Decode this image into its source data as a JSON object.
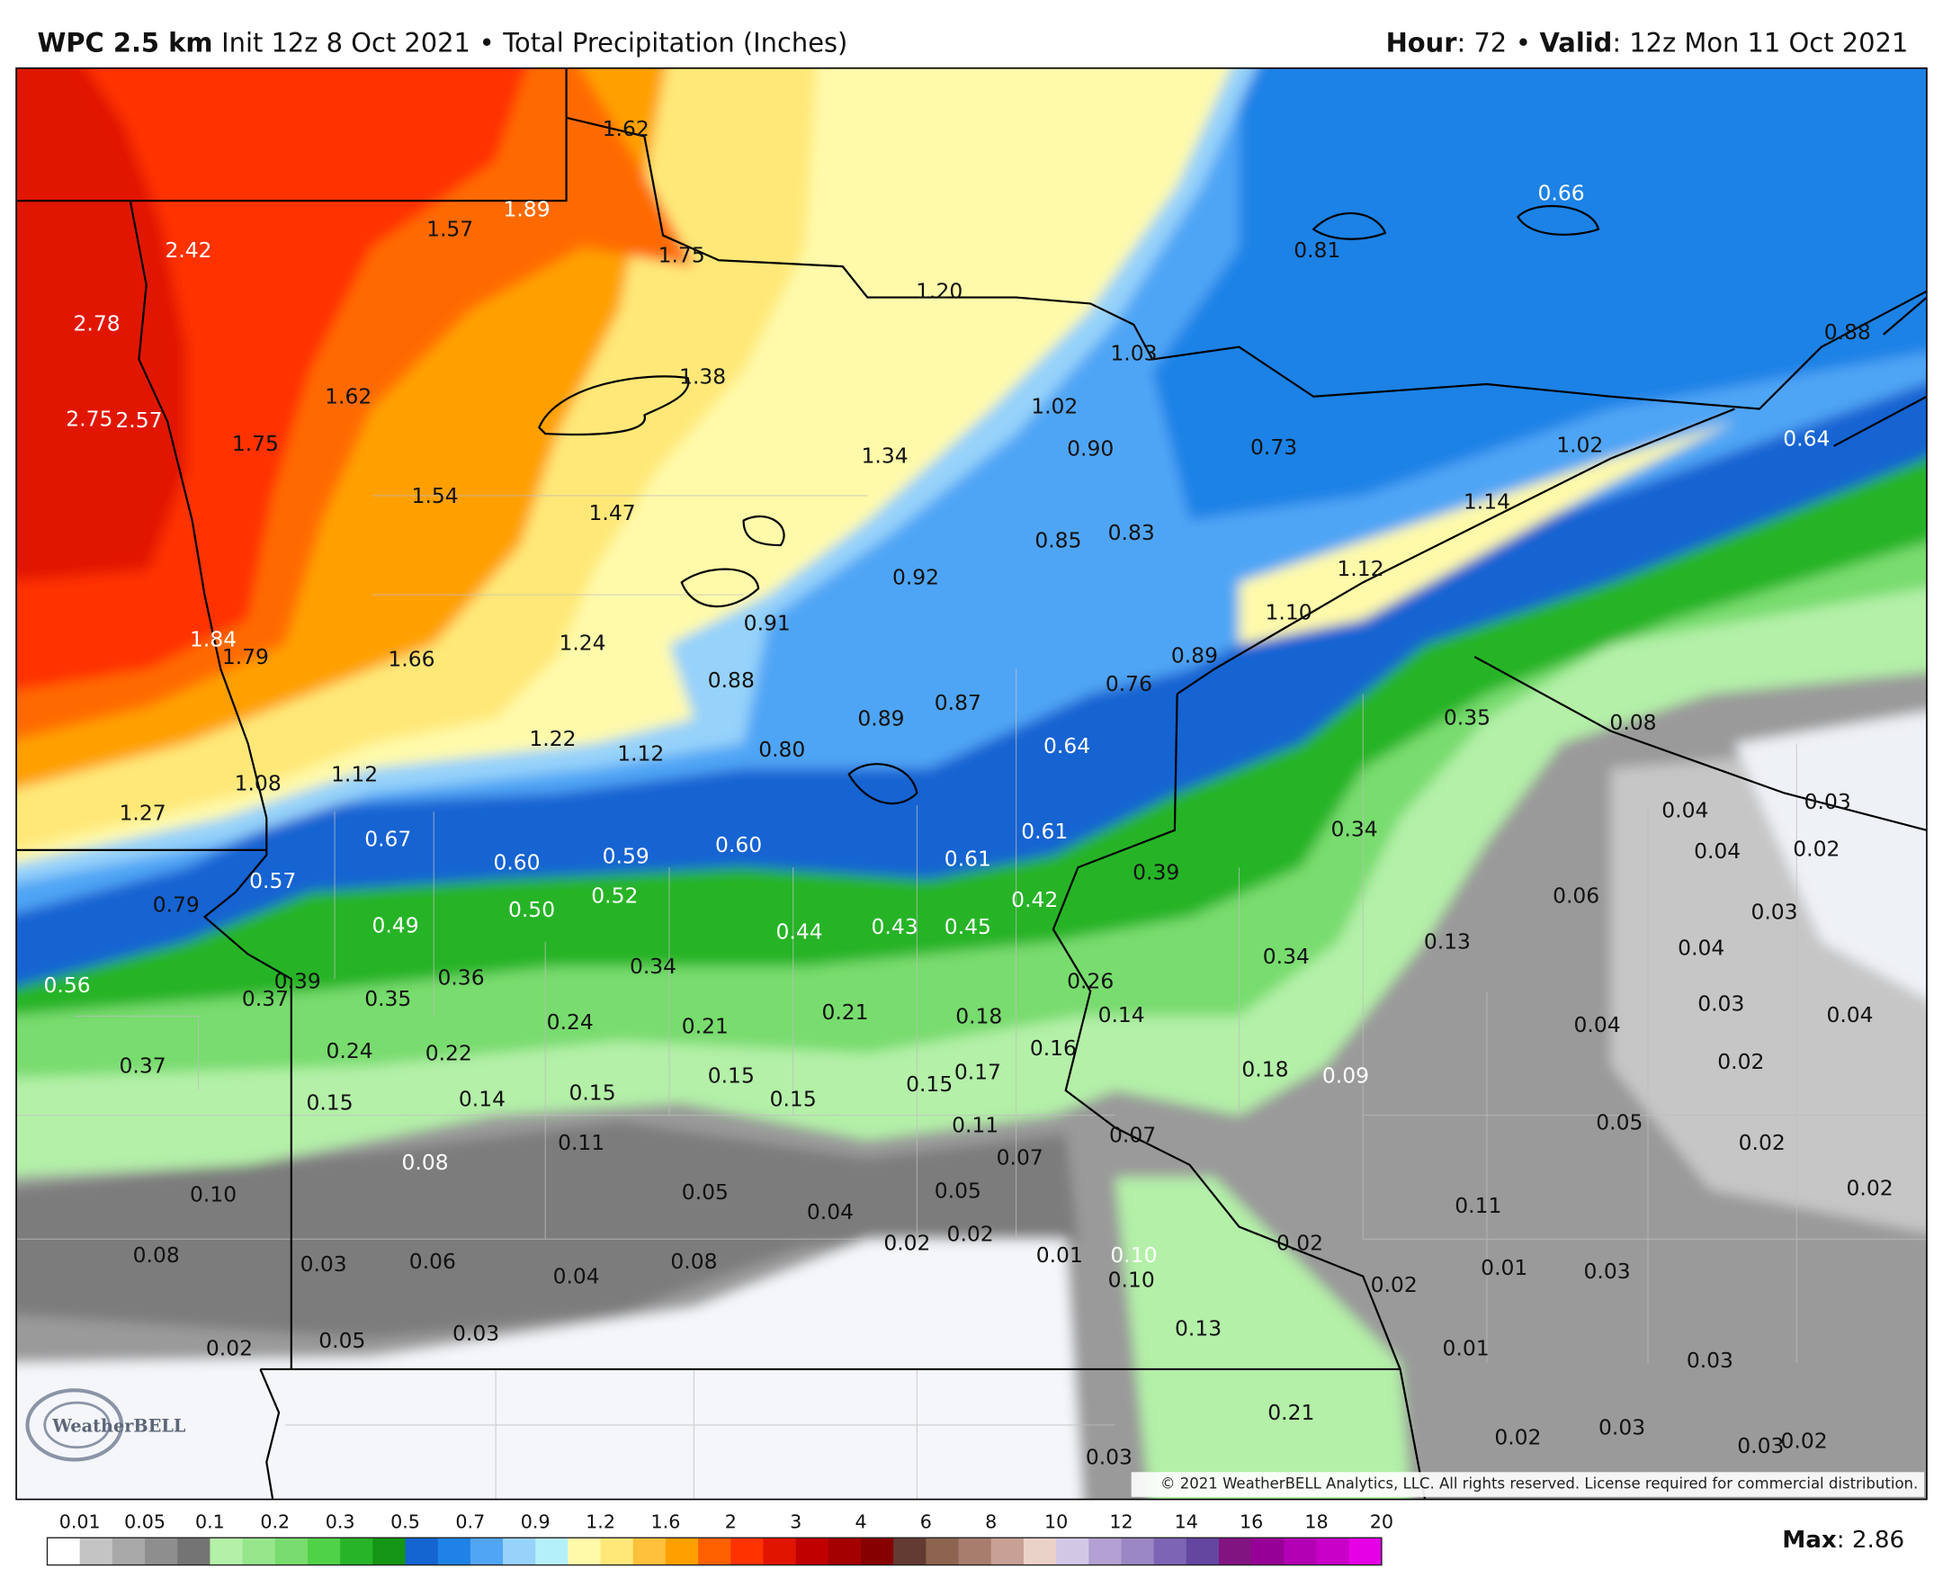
{
  "header": {
    "model": "WPC 2.5 km",
    "init": "Init 12z 8 Oct 2021",
    "separator": "•",
    "product": "Total Precipitation (Inches)",
    "hour_label": "Hour",
    "hour_text": ": 72",
    "valid_label": "Valid",
    "valid_text": ": 12z Mon 11 Oct 2021"
  },
  "map": {
    "point_labels": [
      "1.62",
      "1.89",
      "1.57",
      "2.42",
      "1.75",
      "1.20",
      "2.78",
      "1.03",
      "1.38",
      "1.62",
      "1.02",
      "0.88",
      "0.66",
      "0.81",
      "2.75",
      "2.57",
      "1.75",
      "0.90",
      "1.34",
      "0.73",
      "1.02",
      "0.64",
      "1.54",
      "1.47",
      "1.14",
      "0.85",
      "0.83",
      "0.92",
      "1.12",
      "1.84",
      "1.79",
      "1.66",
      "1.24",
      "0.91",
      "1.10",
      "0.89",
      "0.88",
      "0.76",
      "0.87",
      "0.89",
      "0.35",
      "0.08",
      "1.22",
      "1.12",
      "0.80",
      "0.64",
      "1.08",
      "1.12",
      "1.27",
      "0.04",
      "0.03",
      "0.61",
      "0.34",
      "0.67",
      "0.60",
      "0.59",
      "0.60",
      "0.61",
      "0.04",
      "0.02",
      "0.57",
      "0.39",
      "0.79",
      "0.42",
      "0.06",
      "0.03",
      "0.49",
      "0.50",
      "0.52",
      "0.44",
      "0.43",
      "0.45",
      "0.34",
      "0.13",
      "0.04",
      "0.56",
      "0.39",
      "0.37",
      "0.35",
      "0.36",
      "0.34",
      "0.26",
      "0.03",
      "0.04",
      "0.24",
      "0.21",
      "0.21",
      "0.18",
      "0.14",
      "0.04",
      "0.37",
      "0.24",
      "0.22",
      "0.16",
      "0.18",
      "0.09",
      "0.02",
      "0.15",
      "0.14",
      "0.15",
      "0.15",
      "0.15",
      "0.15",
      "0.17",
      "0.05",
      "0.11",
      "0.11",
      "0.07",
      "0.02",
      "0.08",
      "0.07",
      "0.10",
      "0.05",
      "0.05",
      "0.04",
      "0.02",
      "0.11",
      "0.08",
      "0.03",
      "0.06",
      "0.04",
      "0.08",
      "0.02",
      "0.02",
      "0.01",
      "0.10",
      "0.10",
      "0.02",
      "0.01",
      "0.03",
      "0.02",
      "0.13",
      "0.03",
      "0.05",
      "0.02",
      "0.01",
      "0.03",
      "0.21",
      "0.02",
      "0.03",
      "0.03",
      "0.02",
      "0.03"
    ],
    "copyright": "© 2021 WeatherBELL Analytics, LLC. All rights reserved. License required for commercial distribution.",
    "logo": "WeatherBELL"
  },
  "legend": {
    "labels": [
      "0.01",
      "0.05",
      "0.1",
      "0.2",
      "0.3",
      "0.5",
      "0.7",
      "0.9",
      "1.2",
      "1.6",
      "2",
      "3",
      "4",
      "6",
      "8",
      "10",
      "12",
      "14",
      "16",
      "18",
      "20"
    ],
    "colors": [
      "#ffffff",
      "#c4c4c4",
      "#a8a8a8",
      "#8e8e8e",
      "#747474",
      "#b4f0a8",
      "#96e68c",
      "#78dc6e",
      "#50d248",
      "#28b428",
      "#149614",
      "#1464d2",
      "#1e82e6",
      "#50a5f5",
      "#96d2fa",
      "#b4f0fa",
      "#fffaaa",
      "#ffe878",
      "#ffc03c",
      "#ffa000",
      "#ff6000",
      "#ff3200",
      "#e11400",
      "#c00000",
      "#a50000",
      "#870000",
      "#643b32",
      "#8c6450",
      "#a87d6e",
      "#c8a096",
      "#ebd2c8",
      "#d2c8e6",
      "#b4a0d2",
      "#9b87c3",
      "#7d64b4",
      "#6446a0",
      "#821482",
      "#960096",
      "#b400b4",
      "#c800c8",
      "#e600e6"
    ],
    "max_label": "Max",
    "max_text": ": 2.86"
  }
}
